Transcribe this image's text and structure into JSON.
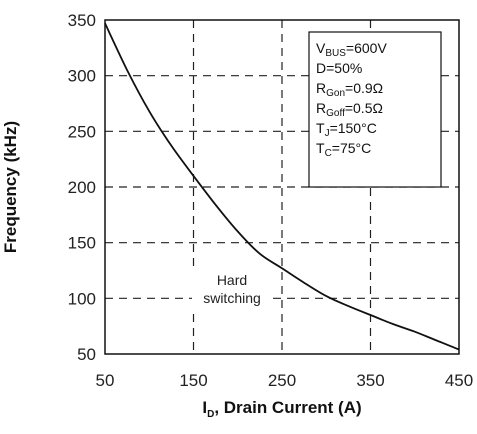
{
  "chart_data": {
    "type": "line",
    "title": "",
    "xlabel": {
      "main": "I",
      "sub": "D",
      "rest": ", Drain Current (A)"
    },
    "ylabel": "Frequency (kHz)",
    "xlim": [
      50,
      450
    ],
    "ylim": [
      50,
      350
    ],
    "x_ticks": [
      50,
      150,
      250,
      350,
      450
    ],
    "y_ticks": [
      50,
      100,
      150,
      200,
      250,
      300,
      350
    ],
    "x_tick_labels": [
      "50",
      "150",
      "250",
      "350",
      "450"
    ],
    "y_tick_labels": [
      "50",
      "100",
      "150",
      "200",
      "250",
      "300",
      "350"
    ],
    "grid": "dashed",
    "series": [
      {
        "x": [
          50,
          75,
          100,
          125,
          150,
          175,
          200,
          225,
          250,
          275,
          300,
          325,
          350,
          375,
          400,
          425,
          450
        ],
        "y": [
          347,
          305,
          268,
          237,
          210,
          184,
          160,
          140,
          127,
          114,
          102,
          93,
          85,
          77,
          70,
          62,
          54
        ]
      }
    ],
    "annotation": {
      "lines": [
        "Hard",
        "switching"
      ]
    },
    "conditions": [
      {
        "main": "V",
        "sub": "BUS",
        "rest": "=600V"
      },
      {
        "main": "D=50%",
        "sub": "",
        "rest": ""
      },
      {
        "main": "R",
        "sub": "Gon",
        "rest": "=0.9Ω"
      },
      {
        "main": "R",
        "sub": "Goff",
        "rest": "=0.5Ω"
      },
      {
        "main": "T",
        "sub": "J",
        "rest": "=150°C"
      },
      {
        "main": "T",
        "sub": "C",
        "rest": "=75°C"
      }
    ],
    "colors": {
      "line": "#111111",
      "grid": "#222222",
      "axes": "#111111"
    }
  }
}
